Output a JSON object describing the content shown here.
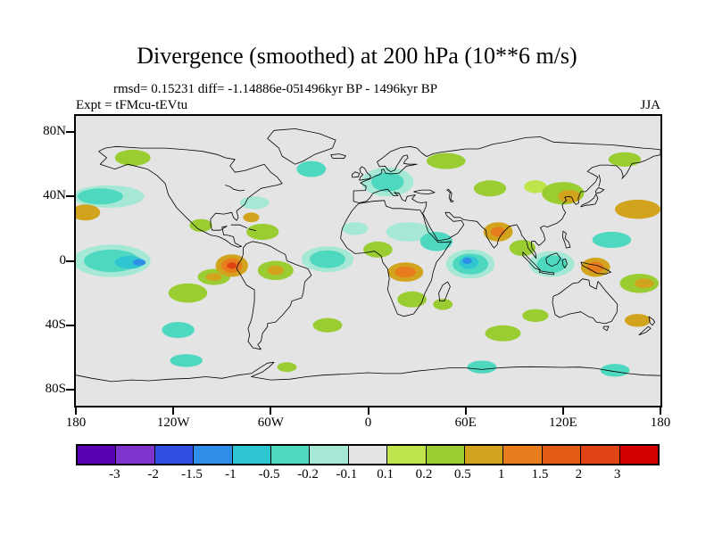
{
  "title": "Divergence (smoothed) at 200 hPa (10**6 m/s)",
  "stats_line": "rmsd= 0.15231 diff= -1.14886e-05",
  "period_line": "1496kyr BP - 1496kyr BP",
  "experiment_label": "Expt = tFMcu-tEVtu",
  "season_label": "JJA",
  "chart_data": {
    "type": "heatmap",
    "subtype": "filled-contour world map, equirectangular projection",
    "title": "Divergence (smoothed) at 200 hPa (10**6 m/s)",
    "quantity": "Divergence (smoothed)",
    "pressure_level": "200 hPa",
    "units": "10**6 m/s",
    "season": "JJA",
    "experiment": "tFMcu-tEVtu",
    "period": "1496kyr BP - 1496kyr BP",
    "rmsd": 0.15231,
    "diff": -1.14886e-05,
    "x_axis": {
      "range": [
        -180,
        180
      ],
      "ticks": [
        "180",
        "120W",
        "60W",
        "0",
        "60E",
        "120E",
        "180"
      ],
      "tick_lons": [
        -180,
        -120,
        -60,
        0,
        60,
        120,
        180
      ]
    },
    "y_axis": {
      "range": [
        -90,
        90
      ],
      "ticks": [
        "80N",
        "40N",
        "0",
        "40S",
        "80S"
      ],
      "tick_lats": [
        80,
        40,
        0,
        -40,
        -80
      ]
    },
    "grid": false,
    "background_color": "#e4e4e4",
    "colorbar": {
      "position": "bottom",
      "labels": [
        "-3",
        "-2",
        "-1.5",
        "-1",
        "-0.5",
        "-0.2",
        "-0.1",
        "0.1",
        "0.2",
        "0.5",
        "1",
        "1.5",
        "2",
        "3"
      ],
      "levels": [
        -3,
        -2,
        -1.5,
        -1,
        -0.5,
        -0.2,
        -0.1,
        0.1,
        0.2,
        0.5,
        1,
        1.5,
        2,
        3
      ],
      "colors": [
        "#5a00b4",
        "#7d33cc",
        "#2e4fe0",
        "#2f8fe8",
        "#2fc6d2",
        "#4fd8c0",
        "#a5e8d5",
        "#e4e4e4",
        "#bfe44c",
        "#9acd32",
        "#d2a41e",
        "#e87d1e",
        "#e35c14",
        "#e04414",
        "#d40000"
      ],
      "open_ended": true
    },
    "anomaly_features_format": "[lon_deg, lat_deg, rx_deg, ry_deg, colorbar_color_index] approximate filled-contour patches read from the map",
    "anomaly_features": [
      [
        -160,
        40,
        22,
        7,
        6
      ],
      [
        -165,
        40,
        14,
        5,
        5
      ],
      [
        -145,
        64,
        11,
        5,
        9
      ],
      [
        158,
        63,
        10,
        4.5,
        9
      ],
      [
        -35,
        57,
        9,
        5,
        5
      ],
      [
        -70,
        36,
        9,
        4,
        6
      ],
      [
        -65,
        18,
        10,
        5,
        9
      ],
      [
        -72,
        27,
        5,
        3,
        10
      ],
      [
        -103,
        22,
        7,
        4,
        9
      ],
      [
        12,
        49,
        16,
        9,
        6
      ],
      [
        12,
        49,
        10,
        6,
        5
      ],
      [
        48,
        62,
        12,
        5,
        9
      ],
      [
        25,
        18,
        14,
        6,
        6
      ],
      [
        -8,
        20,
        8,
        4,
        6
      ],
      [
        42,
        12,
        10,
        6,
        5
      ],
      [
        75,
        45,
        10,
        5,
        9
      ],
      [
        103,
        46,
        7,
        4,
        8
      ],
      [
        120,
        42,
        13,
        7,
        9
      ],
      [
        124,
        40,
        7,
        4,
        10
      ],
      [
        166,
        32,
        14,
        6,
        10
      ],
      [
        -174,
        30,
        9,
        5,
        10
      ],
      [
        150,
        13,
        12,
        5,
        5
      ],
      [
        -158,
        0,
        24,
        10,
        6
      ],
      [
        -158,
        0,
        17,
        7,
        5
      ],
      [
        -147,
        -1,
        9,
        4,
        4
      ],
      [
        -141,
        -1,
        4,
        2,
        3
      ],
      [
        -111,
        -20,
        12,
        6,
        9
      ],
      [
        -95,
        -10,
        10,
        5,
        9
      ],
      [
        -95,
        -10,
        5,
        2.5,
        10
      ],
      [
        -84,
        -3,
        10,
        7,
        10
      ],
      [
        -84,
        -3,
        6.5,
        4.5,
        11
      ],
      [
        -84,
        -3,
        3,
        2,
        13
      ],
      [
        -57,
        -6,
        11,
        6,
        9
      ],
      [
        -57,
        -6,
        5,
        3,
        10
      ],
      [
        -25,
        1,
        16,
        8,
        6
      ],
      [
        -25,
        1,
        11,
        5.5,
        5
      ],
      [
        6,
        7,
        9,
        5,
        9
      ],
      [
        23,
        -7,
        11,
        6,
        10
      ],
      [
        23,
        -7,
        6.5,
        3.5,
        11
      ],
      [
        27,
        -24,
        9,
        5,
        9
      ],
      [
        46,
        -27,
        6,
        3.5,
        9
      ],
      [
        63,
        -2,
        15,
        9,
        6
      ],
      [
        63,
        -2,
        11,
        6.5,
        5
      ],
      [
        62,
        -1,
        6,
        4,
        4
      ],
      [
        61,
        0,
        3,
        2,
        3
      ],
      [
        80,
        18,
        9,
        6,
        10
      ],
      [
        80,
        18,
        4.5,
        3,
        11
      ],
      [
        95,
        8,
        8,
        5,
        9
      ],
      [
        113,
        -2,
        14,
        8,
        6
      ],
      [
        113,
        -2,
        9,
        5.5,
        5
      ],
      [
        140,
        -4,
        9,
        6,
        10
      ],
      [
        140,
        -4,
        5,
        3.5,
        11
      ],
      [
        167,
        -14,
        12,
        6,
        9
      ],
      [
        170,
        -14,
        6,
        3,
        10
      ],
      [
        -117,
        -43,
        10,
        5,
        5
      ],
      [
        -25,
        -40,
        9,
        4.5,
        9
      ],
      [
        83,
        -45,
        11,
        5,
        9
      ],
      [
        103,
        -34,
        8,
        4,
        9
      ],
      [
        166,
        -37,
        8,
        4,
        10
      ],
      [
        -112,
        -62,
        10,
        4,
        5
      ],
      [
        70,
        -66,
        9,
        4,
        5
      ],
      [
        152,
        -68,
        9,
        4,
        5
      ],
      [
        -50,
        -66,
        6,
        3,
        9
      ]
    ]
  }
}
